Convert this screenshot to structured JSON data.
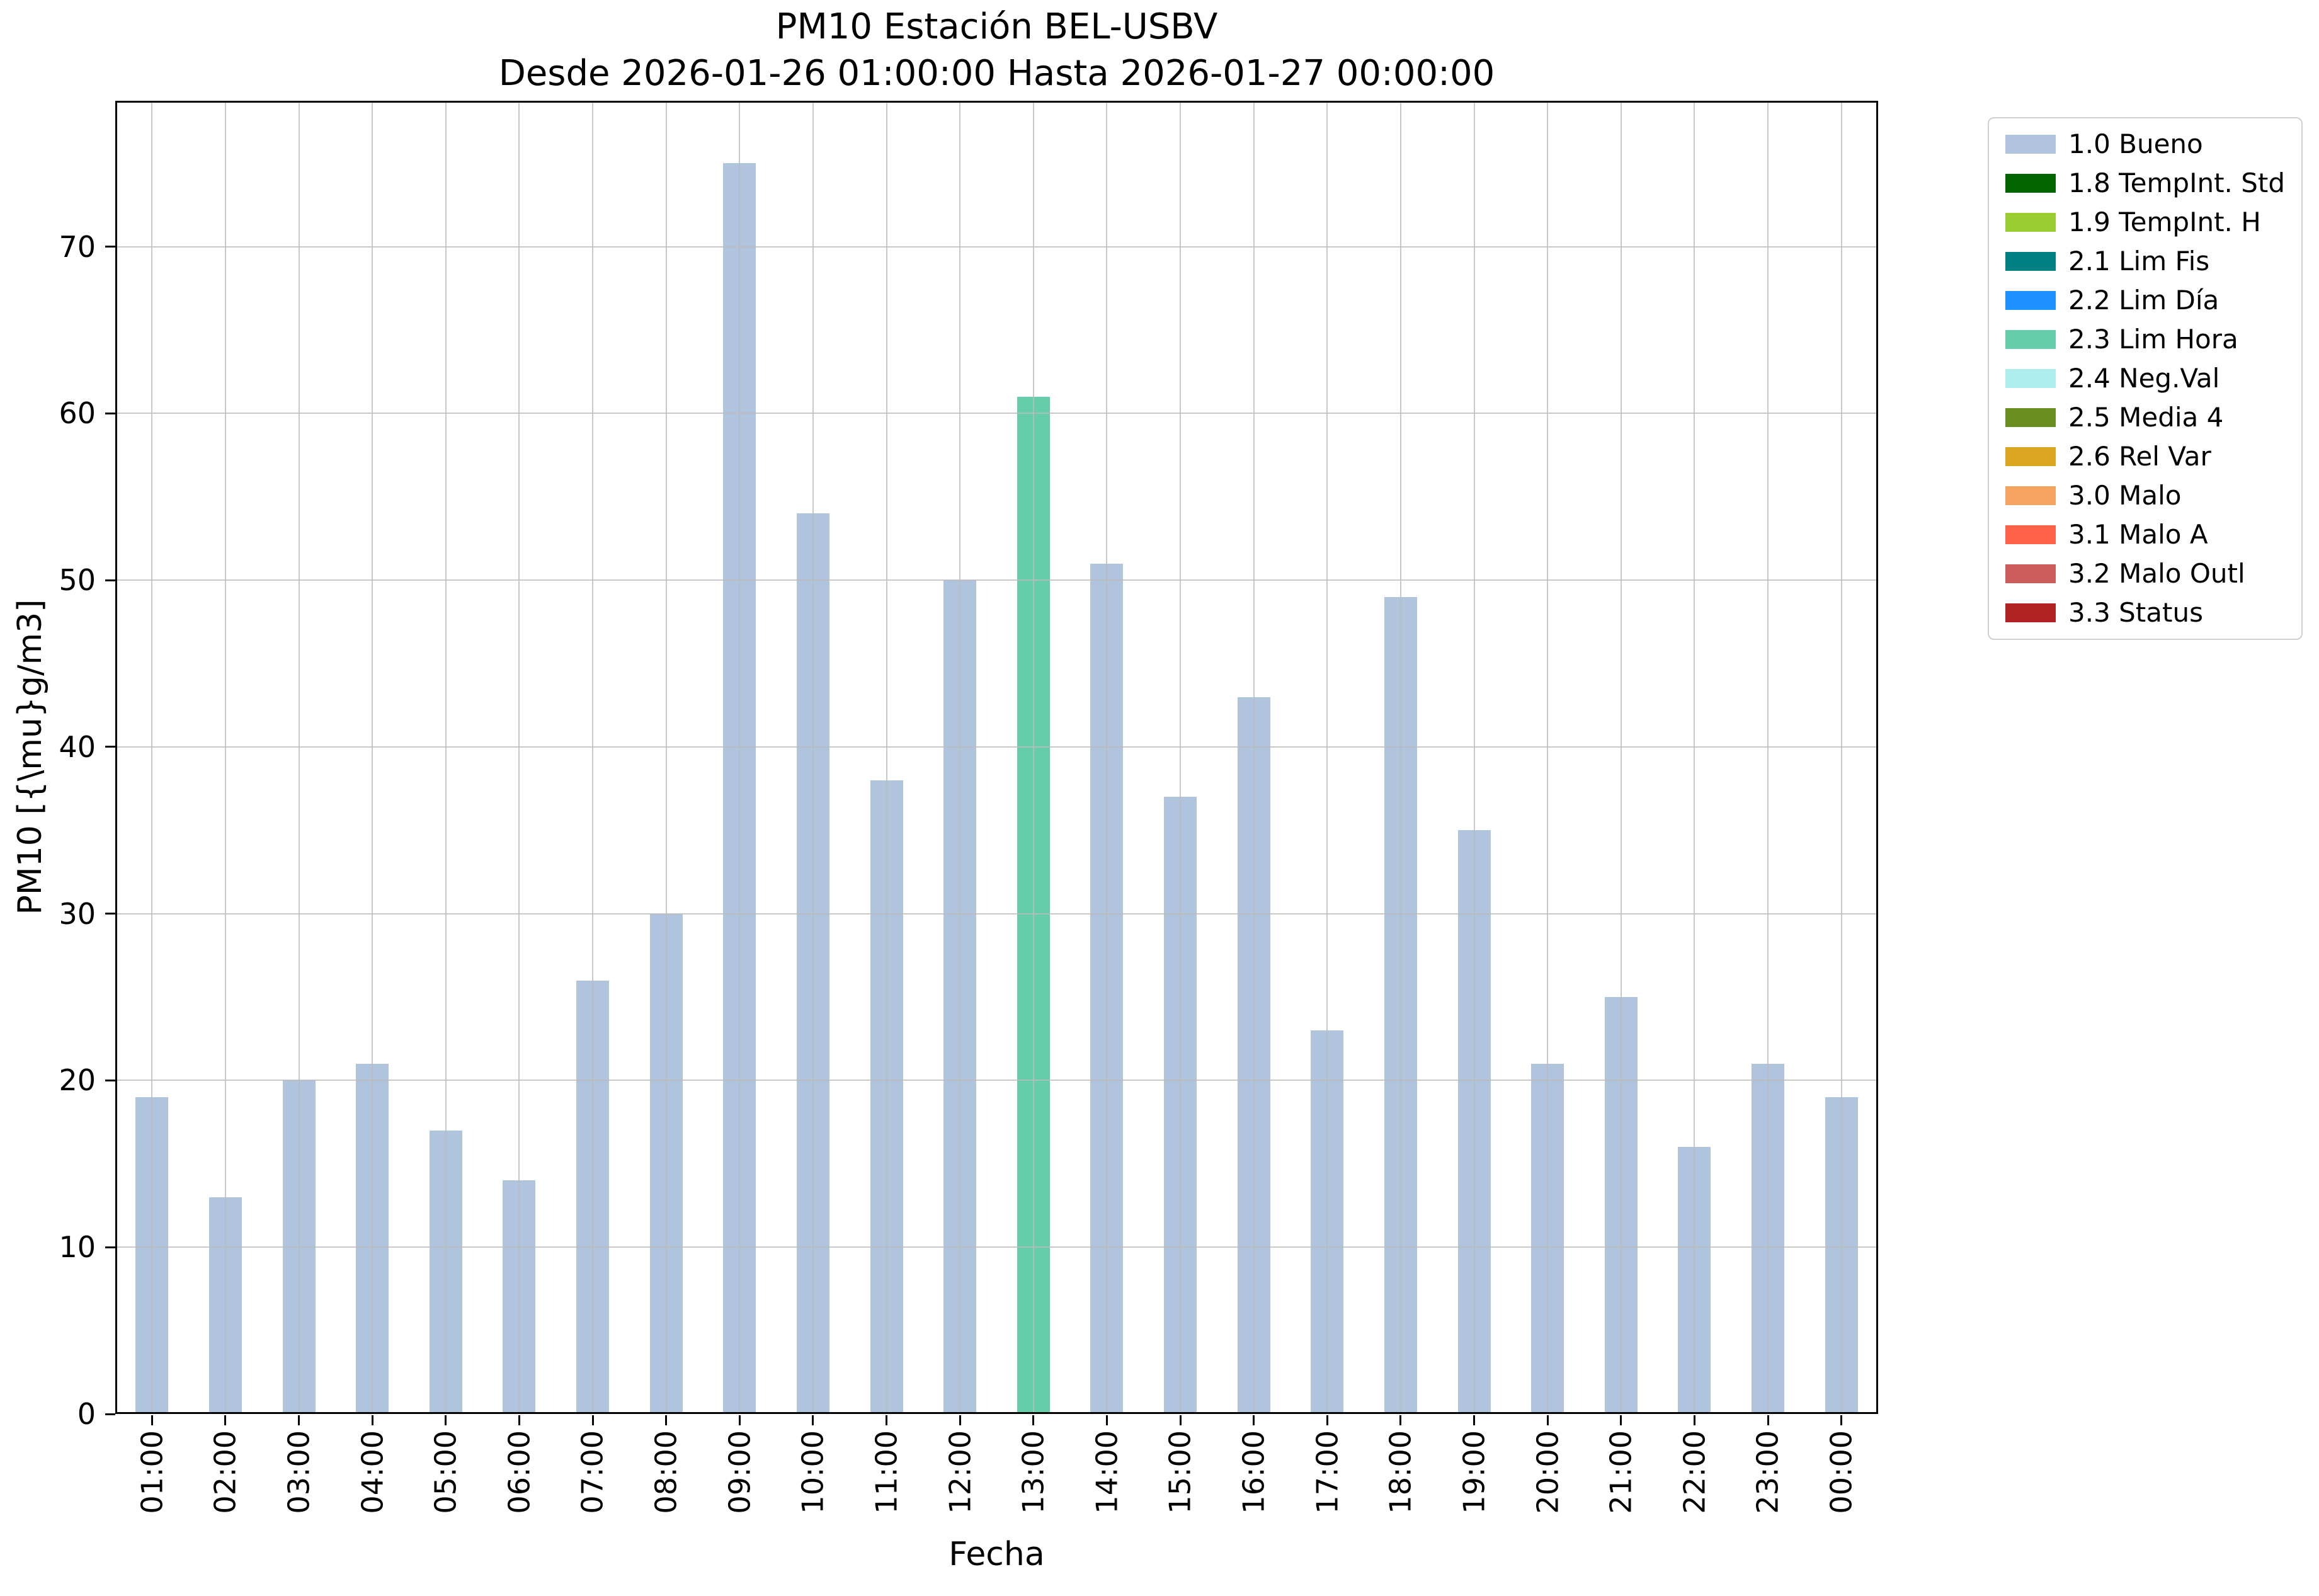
{
  "chart_data": {
    "type": "bar",
    "title": "PM10 Estación BEL-USBV",
    "subtitle": "Desde 2026-01-26 01:00:00 Hasta 2026-01-27 00:00:00",
    "xlabel": "Fecha",
    "ylabel": "PM10 [{\\mu}g/m3]",
    "ylim": [
      0,
      78.75
    ],
    "yticks": [
      0,
      10,
      20,
      30,
      40,
      50,
      60,
      70
    ],
    "grid": true,
    "legend_position": "outside upper right",
    "categories": [
      "01:00",
      "02:00",
      "03:00",
      "04:00",
      "05:00",
      "06:00",
      "07:00",
      "08:00",
      "09:00",
      "10:00",
      "11:00",
      "12:00",
      "13:00",
      "14:00",
      "15:00",
      "16:00",
      "17:00",
      "18:00",
      "19:00",
      "20:00",
      "21:00",
      "22:00",
      "23:00",
      "00:00"
    ],
    "values": [
      19,
      13,
      20,
      21,
      17,
      14,
      26,
      30,
      75,
      54,
      38,
      50,
      61,
      51,
      37,
      43,
      23,
      49,
      35,
      21,
      25,
      16,
      21,
      19
    ],
    "colors": [
      "#b0c4de",
      "#b0c4de",
      "#b0c4de",
      "#b0c4de",
      "#b0c4de",
      "#b0c4de",
      "#b0c4de",
      "#b0c4de",
      "#b0c4de",
      "#b0c4de",
      "#b0c4de",
      "#b0c4de",
      "#66cdaa",
      "#b0c4de",
      "#b0c4de",
      "#b0c4de",
      "#b0c4de",
      "#b0c4de",
      "#b0c4de",
      "#b0c4de",
      "#b0c4de",
      "#b0c4de",
      "#b0c4de",
      "#b0c4de"
    ],
    "bar_status": [
      "1.0 Bueno",
      "1.0 Bueno",
      "1.0 Bueno",
      "1.0 Bueno",
      "1.0 Bueno",
      "1.0 Bueno",
      "1.0 Bueno",
      "1.0 Bueno",
      "1.0 Bueno",
      "1.0 Bueno",
      "1.0 Bueno",
      "1.0 Bueno",
      "2.3 Lim Hora",
      "1.0 Bueno",
      "1.0 Bueno",
      "1.0 Bueno",
      "1.0 Bueno",
      "1.0 Bueno",
      "1.0 Bueno",
      "1.0 Bueno",
      "1.0 Bueno",
      "1.0 Bueno",
      "1.0 Bueno",
      "1.0 Bueno"
    ],
    "legend": [
      {
        "label": "1.0 Bueno",
        "color": "#b0c4de"
      },
      {
        "label": "1.8 TempInt. Std",
        "color": "#006400"
      },
      {
        "label": "1.9 TempInt. H",
        "color": "#9acd32"
      },
      {
        "label": "2.1 Lim Fis",
        "color": "#008080"
      },
      {
        "label": "2.2 Lim Día",
        "color": "#1e90ff"
      },
      {
        "label": "2.3 Lim Hora",
        "color": "#66cdaa"
      },
      {
        "label": "2.4 Neg.Val",
        "color": "#afeeee"
      },
      {
        "label": "2.5 Media 4",
        "color": "#6b8e23"
      },
      {
        "label": "2.6 Rel Var",
        "color": "#daa520"
      },
      {
        "label": "3.0 Malo",
        "color": "#f4a460"
      },
      {
        "label": "3.1 Malo A",
        "color": "#ff6347"
      },
      {
        "label": "3.2 Malo Outl",
        "color": "#cd5c5c"
      },
      {
        "label": "3.3 Status",
        "color": "#b22222"
      }
    ]
  }
}
